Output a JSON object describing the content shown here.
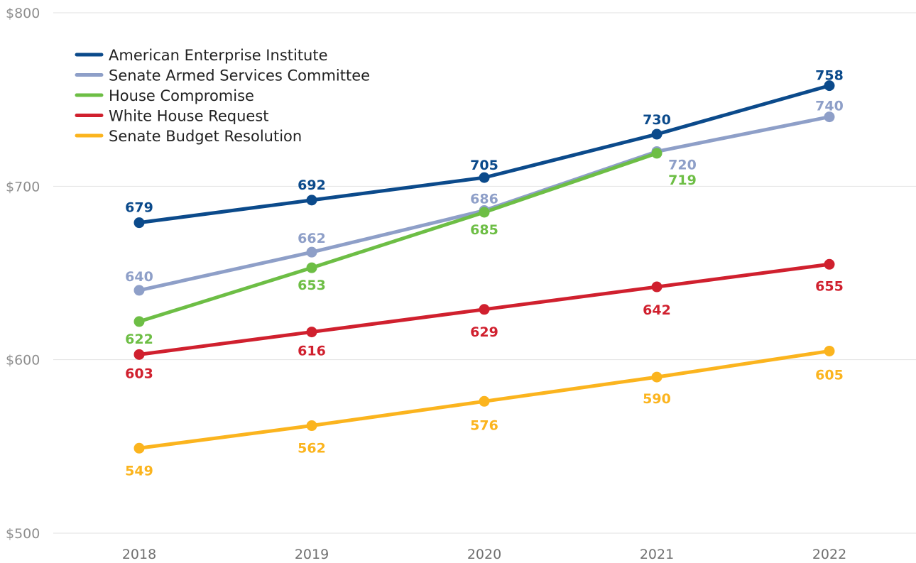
{
  "chart_data": {
    "type": "line",
    "title": "",
    "xlabel": "",
    "ylabel": "",
    "x": [
      "2018",
      "2019",
      "2020",
      "2021",
      "2022"
    ],
    "ylim": [
      500,
      800
    ],
    "yticks": [
      500,
      600,
      700,
      800
    ],
    "ytick_labels": [
      "$500",
      "$600",
      "$700",
      "$800"
    ],
    "grid": "horizontal",
    "legend_position": "top-left",
    "series": [
      {
        "name": "American Enterprise Institute",
        "color": "#0b4a8b",
        "values": [
          679,
          692,
          705,
          730,
          758
        ]
      },
      {
        "name": "Senate Armed Services Committee",
        "color": "#8e9fc8",
        "values": [
          640,
          662,
          686,
          720,
          740
        ]
      },
      {
        "name": "House Compromise",
        "color": "#6dbe45",
        "values": [
          622,
          653,
          685,
          719,
          null
        ]
      },
      {
        "name": "White House Request",
        "color": "#d0202e",
        "values": [
          603,
          616,
          629,
          642,
          655
        ]
      },
      {
        "name": "Senate Budget Resolution",
        "color": "#fbb41e",
        "values": [
          549,
          562,
          576,
          590,
          605
        ]
      }
    ]
  }
}
